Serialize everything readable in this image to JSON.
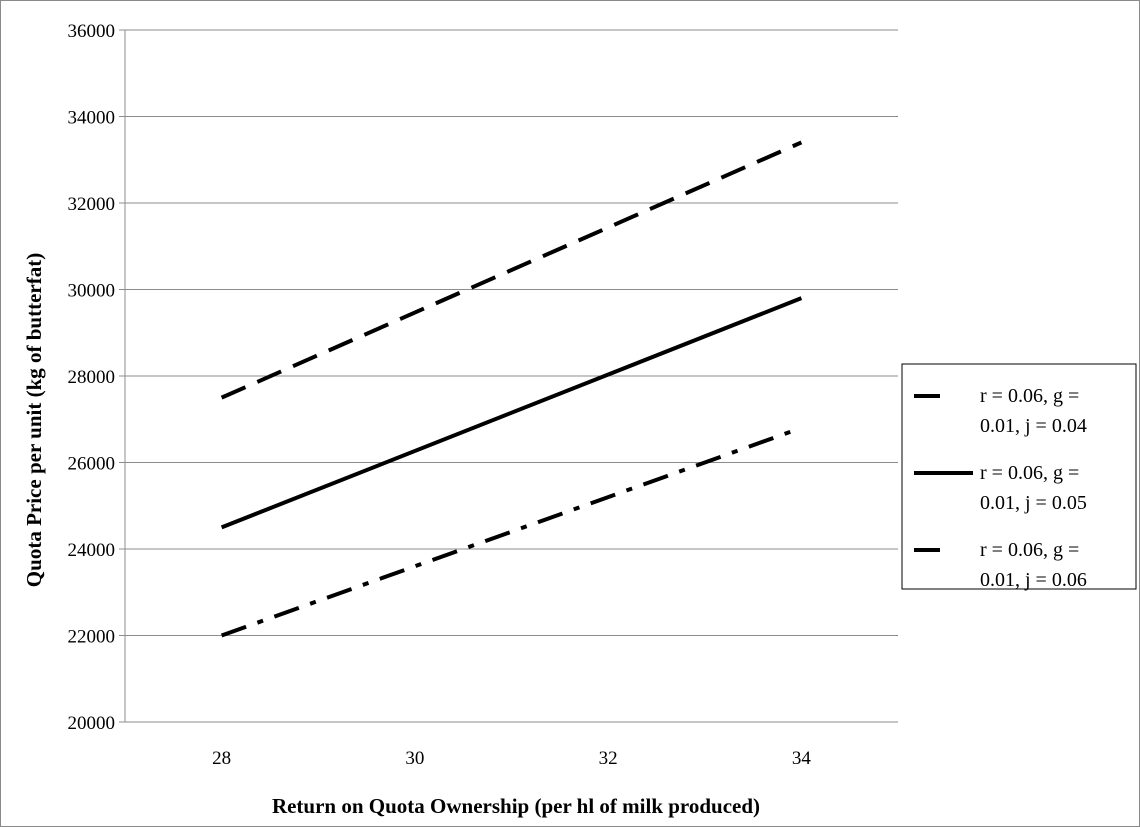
{
  "chart_data": {
    "type": "line",
    "title": "",
    "xlabel": "Return  on Quota Ownership (per hl of milk produced)",
    "ylabel": "Quota Price per unit (kg of butterfat)",
    "x": [
      28,
      34
    ],
    "xticks": [
      "28",
      "30",
      "32",
      "34"
    ],
    "xlim": [
      27,
      35
    ],
    "ylim": [
      20000,
      36000
    ],
    "yticks": [
      "20000",
      "22000",
      "24000",
      "26000",
      "28000",
      "30000",
      "32000",
      "34000",
      "36000"
    ],
    "grid": "horizontal",
    "legend_position": "right",
    "series": [
      {
        "name": "r = 0.06, g = 0.01, j = 0.04",
        "line1": "r = 0.06, g =",
        "line2": "0.01, j = 0.04",
        "style": "dashed",
        "values": [
          27500,
          33400
        ]
      },
      {
        "name": "r = 0.06, g = 0.01, j = 0.05",
        "line1": "r = 0.06, g =",
        "line2": "0.01, j = 0.05",
        "style": "solid",
        "values": [
          24500,
          29800
        ]
      },
      {
        "name": "r = 0.06, g = 0.01, j = 0.06",
        "line1": "r = 0.06, g =",
        "line2": "0.01, j = 0.06",
        "style": "dashdot",
        "values": [
          22000,
          26800
        ]
      }
    ]
  }
}
